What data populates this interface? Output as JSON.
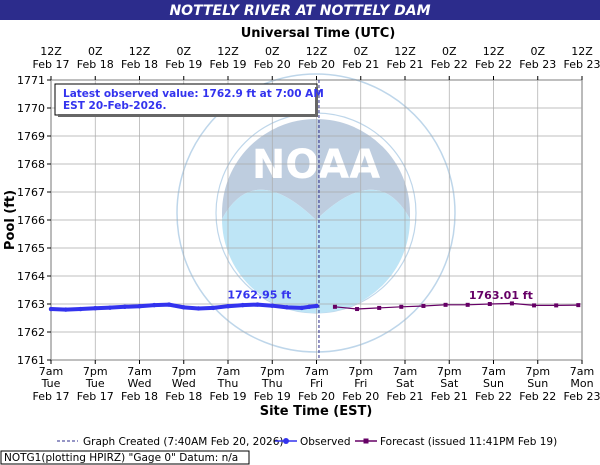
{
  "header": {
    "title": "NOTTELY RIVER AT NOTTELY DAM"
  },
  "top_axis_title": "Universal Time (UTC)",
  "bottom_axis_title": "Site Time (EST)",
  "latest_box": {
    "line1": "Latest observed value: 1762.9 ft at 7:00 AM",
    "line2": "EST 20-Feb-2026."
  },
  "footer_text": "NOTG1(plotting HPIRZ) \"Gage 0\" Datum: n/a",
  "legend": {
    "graph_created": "Graph Created (7:40AM Feb 20, 2026)",
    "observed": "Observed",
    "forecast": "Forecast (issued 11:41PM Feb 19)"
  },
  "colors": {
    "title_bg": "#2c2c8c",
    "observed": "#3333ee",
    "forecast": "#660066",
    "grid": "#aaaaaa",
    "annotation": "#3333ee"
  },
  "chart_data": {
    "type": "line",
    "title": "NOTTELY RIVER AT NOTTELY DAM",
    "xlabel": "Site Time (EST)",
    "x2label": "Universal Time (UTC)",
    "ylabel": "Pool (ft)",
    "ylim": [
      1761,
      1771
    ],
    "xlim_hours": [
      0,
      144
    ],
    "grid": true,
    "yticks": [
      1761,
      1762,
      1763,
      1764,
      1765,
      1766,
      1767,
      1768,
      1769,
      1770,
      1771
    ],
    "bottom_ticks": [
      {
        "h": 0,
        "l1": "7am",
        "l2": "Tue",
        "l3": "Feb 17"
      },
      {
        "h": 12,
        "l1": "7pm",
        "l2": "Tue",
        "l3": "Feb 17"
      },
      {
        "h": 24,
        "l1": "7am",
        "l2": "Wed",
        "l3": "Feb 18"
      },
      {
        "h": 36,
        "l1": "7pm",
        "l2": "Wed",
        "l3": "Feb 18"
      },
      {
        "h": 48,
        "l1": "7am",
        "l2": "Thu",
        "l3": "Feb 19"
      },
      {
        "h": 60,
        "l1": "7pm",
        "l2": "Thu",
        "l3": "Feb 19"
      },
      {
        "h": 72,
        "l1": "7am",
        "l2": "Fri",
        "l3": "Feb 20"
      },
      {
        "h": 84,
        "l1": "7pm",
        "l2": "Fri",
        "l3": "Feb 20"
      },
      {
        "h": 96,
        "l1": "7am",
        "l2": "Sat",
        "l3": "Feb 21"
      },
      {
        "h": 108,
        "l1": "7pm",
        "l2": "Sat",
        "l3": "Feb 21"
      },
      {
        "h": 120,
        "l1": "7am",
        "l2": "Sun",
        "l3": "Feb 22"
      },
      {
        "h": 132,
        "l1": "7pm",
        "l2": "Sun",
        "l3": "Feb 22"
      },
      {
        "h": 144,
        "l1": "7am",
        "l2": "Mon",
        "l3": "Feb 23"
      }
    ],
    "top_ticks": [
      {
        "h": 0,
        "l1": "12Z",
        "l2": "Feb 17"
      },
      {
        "h": 12,
        "l1": "0Z",
        "l2": "Feb 18"
      },
      {
        "h": 24,
        "l1": "12Z",
        "l2": "Feb 18"
      },
      {
        "h": 36,
        "l1": "0Z",
        "l2": "Feb 19"
      },
      {
        "h": 48,
        "l1": "12Z",
        "l2": "Feb 19"
      },
      {
        "h": 60,
        "l1": "0Z",
        "l2": "Feb 20"
      },
      {
        "h": 72,
        "l1": "12Z",
        "l2": "Feb 20"
      },
      {
        "h": 84,
        "l1": "0Z",
        "l2": "Feb 21"
      },
      {
        "h": 96,
        "l1": "12Z",
        "l2": "Feb 21"
      },
      {
        "h": 108,
        "l1": "0Z",
        "l2": "Feb 22"
      },
      {
        "h": 120,
        "l1": "12Z",
        "l2": "Feb 22"
      },
      {
        "h": 132,
        "l1": "0Z",
        "l2": "Feb 23"
      },
      {
        "h": 144,
        "l1": "12Z",
        "l2": "Feb 23"
      }
    ],
    "graph_created_hour": 72.67,
    "series": [
      {
        "name": "Observed",
        "x": [
          0,
          4,
          8,
          12,
          16,
          20,
          24,
          28,
          32,
          36,
          40,
          44,
          48,
          52,
          56,
          60,
          64,
          68,
          70,
          72
        ],
        "y": [
          1762.82,
          1762.8,
          1762.82,
          1762.85,
          1762.87,
          1762.9,
          1762.92,
          1762.96,
          1762.98,
          1762.88,
          1762.84,
          1762.86,
          1762.92,
          1762.96,
          1762.98,
          1762.94,
          1762.88,
          1762.86,
          1762.9,
          1762.93
        ]
      },
      {
        "name": "Forecast",
        "x": [
          77,
          83,
          89,
          95,
          101,
          107,
          113,
          119,
          125,
          131,
          137,
          143
        ],
        "y": [
          1762.9,
          1762.82,
          1762.86,
          1762.9,
          1762.93,
          1762.97,
          1762.97,
          1763.0,
          1763.02,
          1762.95,
          1762.95,
          1762.96
        ]
      }
    ],
    "annotations": [
      {
        "text": "1762.95 ft",
        "series": "Observed",
        "x": 56.5,
        "y": 1763.05
      },
      {
        "text": "1763.01 ft",
        "series": "Forecast",
        "x": 122,
        "y": 1763.04
      }
    ]
  }
}
